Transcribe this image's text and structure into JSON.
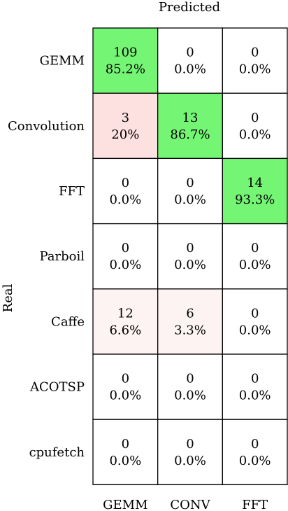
{
  "chart_data": {
    "type": "heatmap",
    "title": "",
    "xlabel": "Predicted",
    "ylabel": "Real",
    "columns": [
      "GEMM",
      "CONV",
      "FFT"
    ],
    "rows": [
      "GEMM",
      "Convolution",
      "FFT",
      "Parboil",
      "Caffe",
      "ACOTSP",
      "cpufetch"
    ],
    "counts": [
      [
        109,
        0,
        0
      ],
      [
        3,
        13,
        0
      ],
      [
        0,
        0,
        14
      ],
      [
        0,
        0,
        0
      ],
      [
        12,
        6,
        0
      ],
      [
        0,
        0,
        0
      ],
      [
        0,
        0,
        0
      ]
    ],
    "percentages": [
      [
        "85.2%",
        "0.0%",
        "0.0%"
      ],
      [
        "20%",
        "86.7%",
        "0.0%"
      ],
      [
        "0.0%",
        "0.0%",
        "93.3%"
      ],
      [
        "0.0%",
        "0.0%",
        "0.0%"
      ],
      [
        "6.6%",
        "3.3%",
        "0.0%"
      ],
      [
        "0.0%",
        "0.0%",
        "0.0%"
      ],
      [
        "0.0%",
        "0.0%",
        "0.0%"
      ]
    ],
    "colors": {
      "correct": "#74f574",
      "misclassified_strong": "#fde0e0",
      "misclassified_light": "#fdf3f2",
      "empty": "#ffffff",
      "grid": "#000000"
    },
    "cell_colors": [
      [
        "correct",
        "empty",
        "empty"
      ],
      [
        "misclassified_strong",
        "correct",
        "empty"
      ],
      [
        "empty",
        "empty",
        "correct"
      ],
      [
        "empty",
        "empty",
        "empty"
      ],
      [
        "misclassified_light",
        "misclassified_light",
        "empty"
      ],
      [
        "empty",
        "empty",
        "empty"
      ],
      [
        "empty",
        "empty",
        "empty"
      ]
    ]
  }
}
